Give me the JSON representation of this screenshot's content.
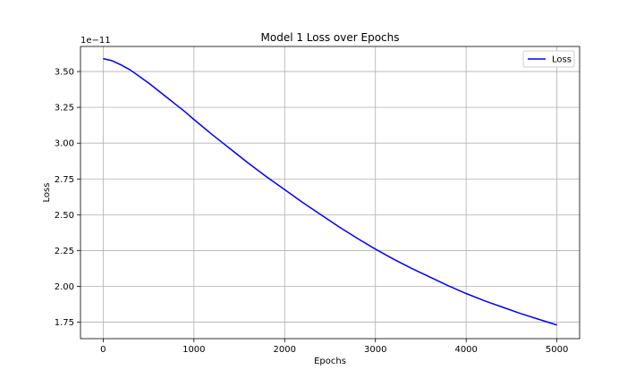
{
  "chart_data": {
    "type": "line",
    "title": "Model 1 Loss over Epochs",
    "xlabel": "Epochs",
    "ylabel": "Loss",
    "y_offset_label": "1e−11",
    "xlim": [
      -250,
      5250
    ],
    "ylim": [
      1.635,
      3.675
    ],
    "xticks": [
      0,
      1000,
      2000,
      3000,
      4000,
      5000
    ],
    "xtick_labels": [
      "0",
      "1000",
      "2000",
      "3000",
      "4000",
      "5000"
    ],
    "yticks": [
      1.75,
      2.0,
      2.25,
      2.5,
      2.75,
      3.0,
      3.25,
      3.5
    ],
    "ytick_labels": [
      "1.75",
      "2.00",
      "2.25",
      "2.50",
      "2.75",
      "3.00",
      "3.25",
      "3.50"
    ],
    "grid": true,
    "legend_position": "top-right",
    "series": [
      {
        "name": "Loss",
        "color": "#0000ff",
        "x": [
          0,
          100,
          200,
          300,
          400,
          500,
          600,
          700,
          800,
          900,
          1000,
          1200,
          1400,
          1600,
          1800,
          2000,
          2200,
          2400,
          2600,
          2800,
          3000,
          3200,
          3400,
          3600,
          3800,
          4000,
          4200,
          4400,
          4600,
          4800,
          5000
        ],
        "y": [
          3.59,
          3.575,
          3.545,
          3.51,
          3.465,
          3.42,
          3.37,
          3.32,
          3.27,
          3.22,
          3.165,
          3.06,
          2.96,
          2.86,
          2.765,
          2.675,
          2.585,
          2.5,
          2.415,
          2.335,
          2.26,
          2.19,
          2.125,
          2.065,
          2.005,
          1.95,
          1.9,
          1.855,
          1.81,
          1.77,
          1.73
        ]
      }
    ]
  }
}
